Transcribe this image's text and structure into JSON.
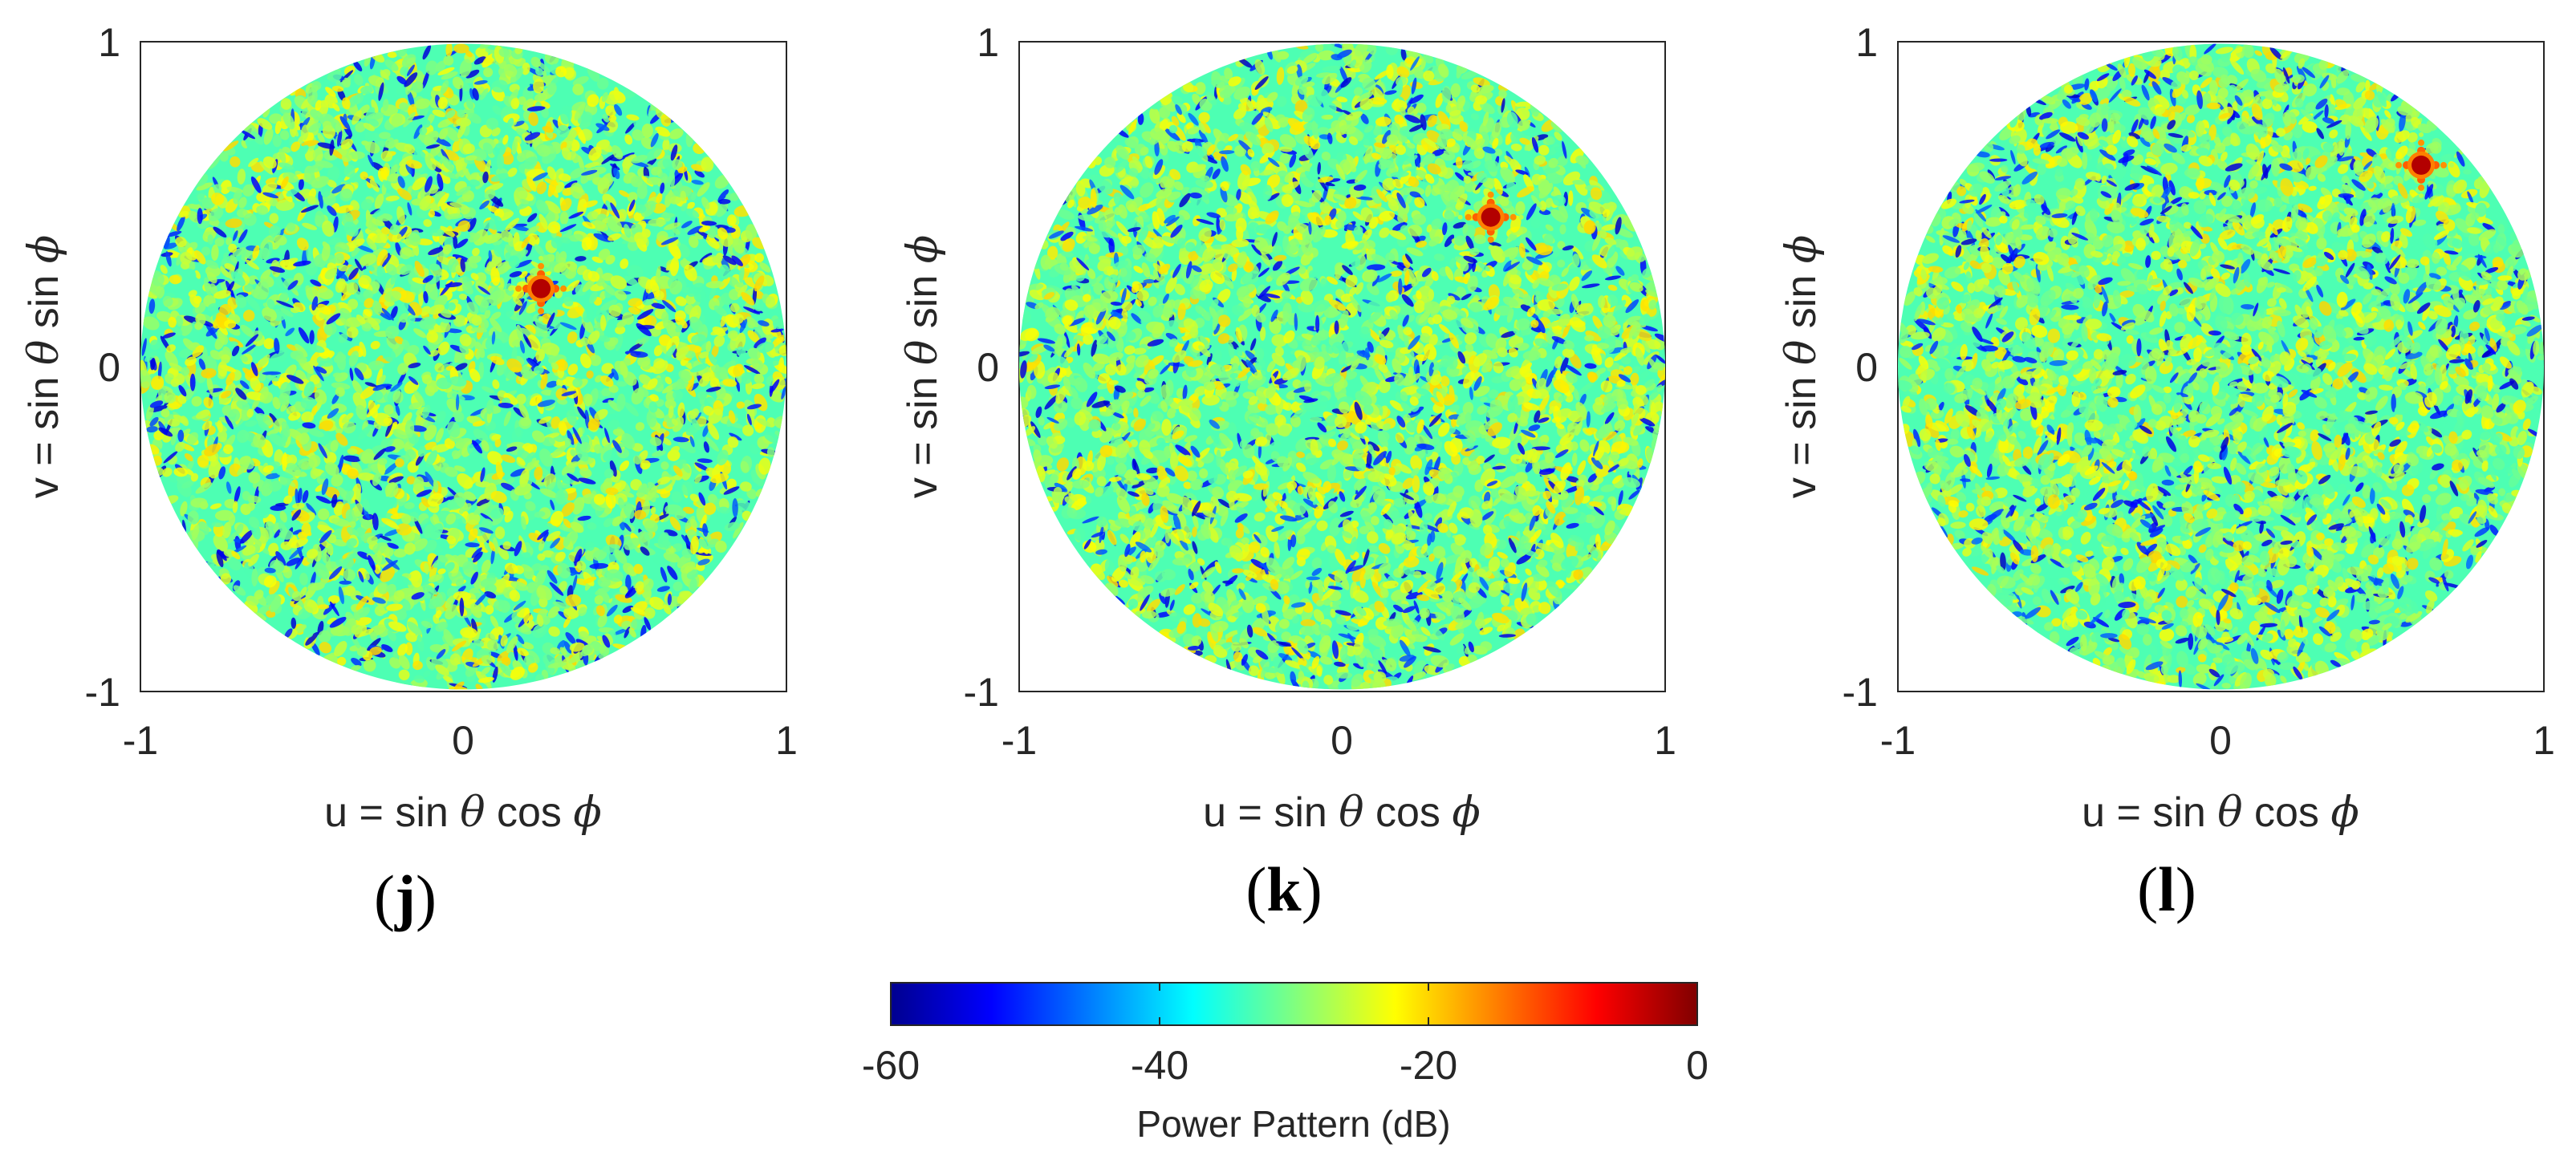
{
  "chart_data": [
    {
      "type": "heatmap",
      "panel_label": "j",
      "xlabel": {
        "prefix": "u = sin ",
        "theta": "θ",
        "mid": " cos ",
        "phi": "ϕ"
      },
      "ylabel": {
        "prefix": "v = sin ",
        "theta": "θ",
        "mid": " sin ",
        "phi": "ϕ"
      },
      "xlim": [
        -1,
        1
      ],
      "ylim": [
        -1,
        1
      ],
      "xticks": [
        "-1",
        "0",
        "1"
      ],
      "yticks": [
        "-1",
        "0",
        "1"
      ],
      "main_beam": {
        "u": 0.24,
        "v": 0.24,
        "level_db": 0
      },
      "background_level_db": [
        -60,
        -20
      ],
      "seed": 7
    },
    {
      "type": "heatmap",
      "panel_label": "k",
      "xlabel": {
        "prefix": "u = sin ",
        "theta": "θ",
        "mid": " cos ",
        "phi": "ϕ"
      },
      "ylabel": {
        "prefix": "v = sin ",
        "theta": "θ",
        "mid": " sin ",
        "phi": "ϕ"
      },
      "xlim": [
        -1,
        1
      ],
      "ylim": [
        -1,
        1
      ],
      "xticks": [
        "-1",
        "0",
        "1"
      ],
      "yticks": [
        "-1",
        "0",
        "1"
      ],
      "main_beam": {
        "u": 0.46,
        "v": 0.46,
        "level_db": 0
      },
      "background_level_db": [
        -60,
        -20
      ],
      "seed": 19
    },
    {
      "type": "heatmap",
      "panel_label": "l",
      "xlabel": {
        "prefix": "u = sin ",
        "theta": "θ",
        "mid": " cos ",
        "phi": "ϕ"
      },
      "ylabel": {
        "prefix": "v = sin ",
        "theta": "θ",
        "mid": " sin ",
        "phi": "ϕ"
      },
      "xlim": [
        -1,
        1
      ],
      "ylim": [
        -1,
        1
      ],
      "xticks": [
        "-1",
        "0",
        "1"
      ],
      "yticks": [
        "-1",
        "0",
        "1"
      ],
      "main_beam": {
        "u": 0.62,
        "v": 0.62,
        "level_db": 0
      },
      "background_level_db": [
        -60,
        -20
      ],
      "seed": 31
    }
  ],
  "colorbar": {
    "colormap": "jet",
    "range": [
      -60,
      0
    ],
    "ticks": [
      "-60",
      "-40",
      "-20",
      "0"
    ],
    "tick_values": [
      -60,
      -40,
      -20,
      0
    ],
    "label": "Power Pattern (dB)"
  }
}
